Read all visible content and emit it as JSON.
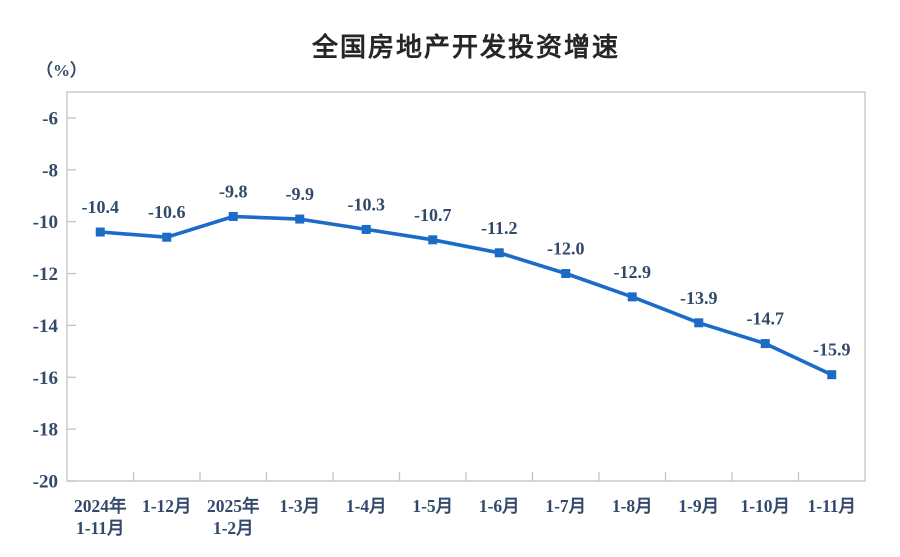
{
  "page": {
    "background": "#FFFFFF"
  },
  "chart_data": {
    "type": "line",
    "title": "全国房地产开发投资增速",
    "unit_label": "（%）",
    "categories": [
      "2024年\n1-11月",
      "1-12月",
      "2025年\n1-2月",
      "1-3月",
      "1-4月",
      "1-5月",
      "1-6月",
      "1-7月",
      "1-8月",
      "1-9月",
      "1-10月",
      "1-11月"
    ],
    "series": [
      {
        "name": "全国房地产开发投资增速",
        "values": [
          -10.4,
          -10.6,
          -9.8,
          -9.9,
          -10.3,
          -10.7,
          -11.2,
          -12.0,
          -12.9,
          -13.9,
          -14.7,
          -15.9
        ]
      }
    ],
    "data_labels": [
      "-10.4",
      "-10.6",
      "-9.8",
      "-9.9",
      "-10.3",
      "-10.7",
      "-11.2",
      "-12.0",
      "-12.9",
      "-13.9",
      "-14.7",
      "-15.9"
    ],
    "xlabel": "",
    "ylabel": "（%）",
    "ylim": [
      -20,
      -5
    ],
    "yticks": [
      -6,
      -8,
      -10,
      -12,
      -14,
      -16,
      -18,
      -20
    ],
    "grid": false,
    "legend": "none",
    "marker": "square",
    "colors": {
      "line": "#1B6CC8",
      "axis": "#C3C3C3",
      "text": "#33496B",
      "title": "#262626",
      "background": "#FFFFFF"
    }
  }
}
